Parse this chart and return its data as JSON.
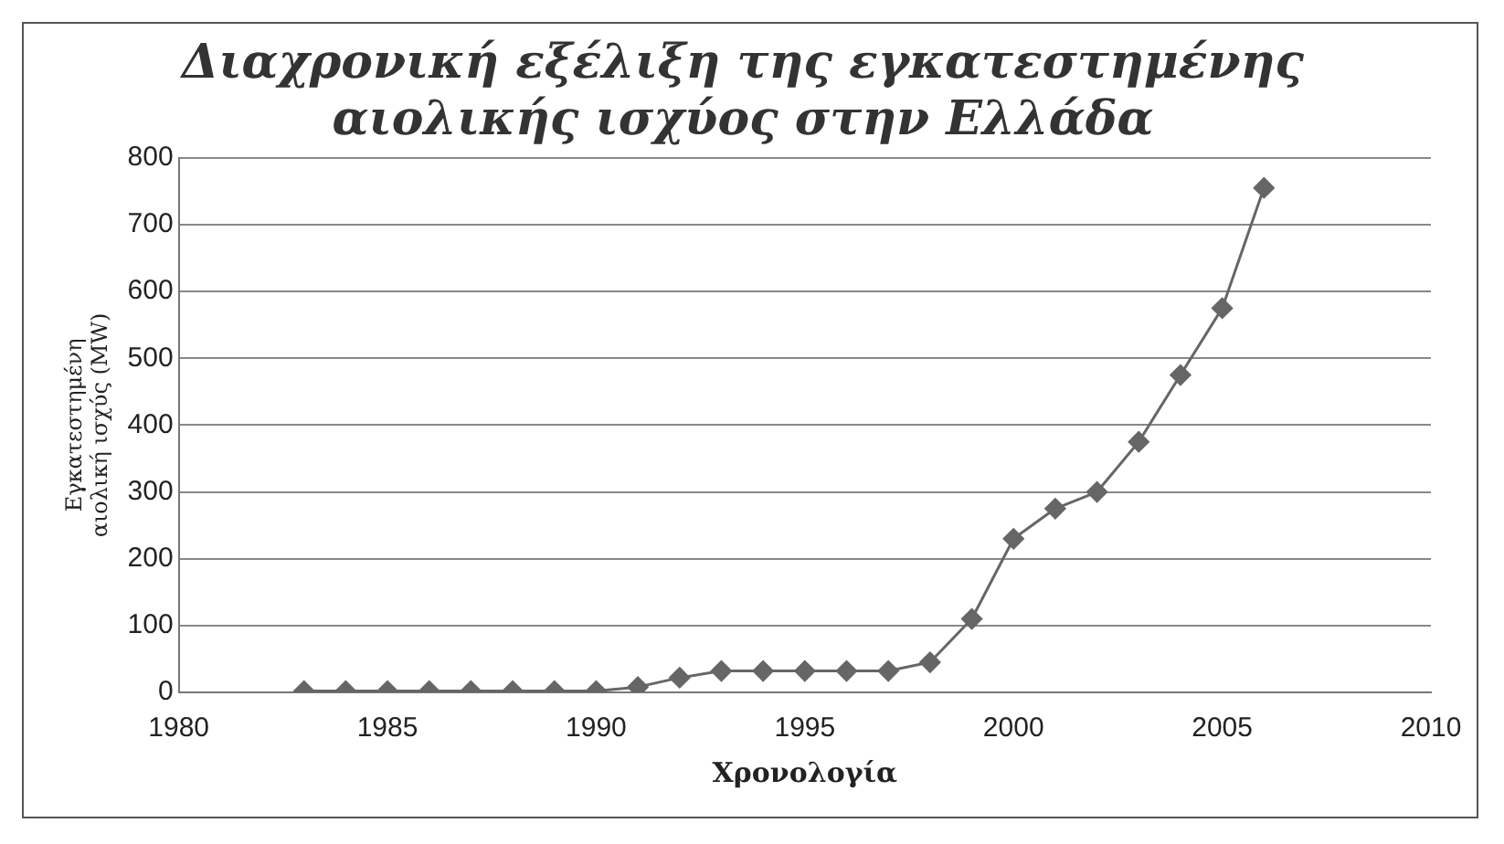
{
  "chart_data": {
    "type": "line",
    "title": [
      "Διαχρονική εξέλιξη της εγκατεστημένης",
      "αιολικής ισχύος στην Ελλάδα"
    ],
    "xlabel": "Χρονολογία",
    "ylabel": [
      "Εγκατεστημένη",
      "αιολική ισχύς (MW)"
    ],
    "x": [
      1983,
      1984,
      1985,
      1986,
      1987,
      1988,
      1989,
      1990,
      1991,
      1992,
      1993,
      1994,
      1995,
      1996,
      1997,
      1998,
      1999,
      2000,
      2001,
      2002,
      2003,
      2004,
      2005,
      2006
    ],
    "series": [
      {
        "color": "#666666",
        "values": [
          2,
          2,
          2,
          2,
          2,
          2,
          2,
          2,
          8,
          22,
          32,
          32,
          32,
          32,
          32,
          45,
          110,
          230,
          275,
          300,
          375,
          475,
          575,
          755
        ]
      }
    ],
    "xlim": [
      1980,
      2010
    ],
    "xticks": [
      1980,
      1985,
      1990,
      1995,
      2000,
      2005,
      2010
    ],
    "ylim": [
      0,
      800
    ],
    "yticks": [
      0,
      100,
      200,
      300,
      400,
      500,
      600,
      700,
      800
    ],
    "grid": "y",
    "legend": false,
    "marker": "diamond",
    "line_style": "solid"
  }
}
